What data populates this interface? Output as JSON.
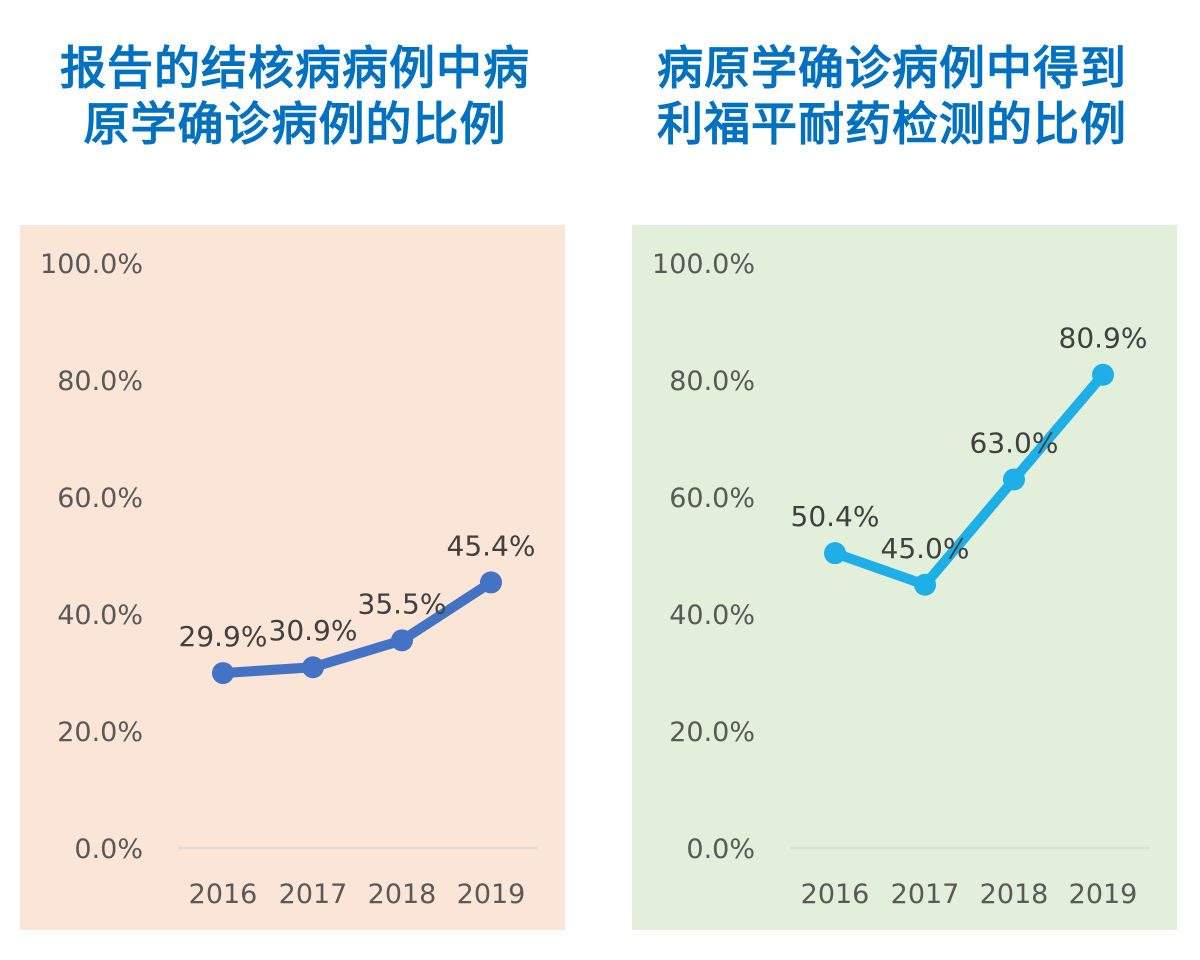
{
  "chart_data": [
    {
      "type": "line",
      "title": "报告的结核病病例中病原学确诊病例的比例",
      "categories": [
        "2016",
        "2017",
        "2018",
        "2019"
      ],
      "values": [
        29.9,
        30.9,
        35.5,
        45.4
      ],
      "data_labels": [
        "29.9%",
        "30.9%",
        "35.5%",
        "45.4%"
      ],
      "yticks": [
        "0.0%",
        "20.0%",
        "40.0%",
        "60.0%",
        "80.0%",
        "100.0%"
      ],
      "ylim": [
        0,
        100
      ],
      "grid": false,
      "colors": {
        "line": "#4472C4",
        "background": "#FBE5D6",
        "title": "#0070C0"
      }
    },
    {
      "type": "line",
      "title": "病原学确诊病例中得到利福平耐药检测的比例",
      "categories": [
        "2016",
        "2017",
        "2018",
        "2019"
      ],
      "values": [
        50.4,
        45.0,
        63.0,
        80.9
      ],
      "data_labels": [
        "50.4%",
        "45.0%",
        "63.0%",
        "80.9%"
      ],
      "yticks": [
        "0.0%",
        "20.0%",
        "40.0%",
        "60.0%",
        "80.0%",
        "100.0%"
      ],
      "ylim": [
        0,
        100
      ],
      "grid": false,
      "colors": {
        "line": "#1EAEE8",
        "background": "#E2EFDA",
        "title": "#0070C0"
      }
    }
  ]
}
